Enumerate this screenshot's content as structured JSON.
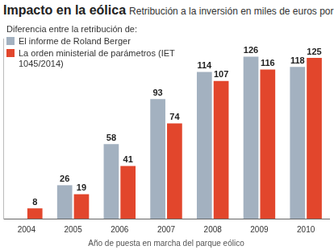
{
  "chart_data": {
    "type": "bar",
    "title": "Impacto en la eólica",
    "subtitle": "Retribución a la inversión en miles de euros por",
    "legend_title": "Diferencia entre la retribución de:",
    "x_label": "Año de puesta en marcha del parque eólico",
    "categories": [
      "2004",
      "2005",
      "2006",
      "2007",
      "2008",
      "2009",
      "2010"
    ],
    "series": [
      {
        "name": "El informe de Roland Berger",
        "color": "#a3b1c0",
        "values": [
          null,
          26,
          58,
          93,
          114,
          126,
          118
        ]
      },
      {
        "name": "La orden ministerial de parámetros (IET 1045/2014)",
        "color": "#e2462c",
        "values": [
          8,
          19,
          41,
          74,
          107,
          116,
          125
        ]
      }
    ],
    "ylim": [
      0,
      140
    ],
    "grid": false,
    "legend": "upper left",
    "data_labels": true,
    "tick_labels": "x"
  }
}
